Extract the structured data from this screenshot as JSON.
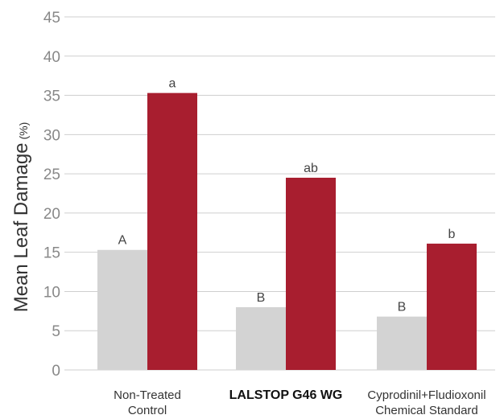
{
  "chart_data": {
    "type": "bar",
    "title": "",
    "xlabel": "",
    "ylabel": "Mean Leaf Damage",
    "ylabel_unit": "(%)",
    "ylim": [
      0,
      45
    ],
    "yticks": [
      "0",
      "5",
      "10",
      "15",
      "20",
      "25",
      "30",
      "35",
      "40",
      "45"
    ],
    "grid": true,
    "categories": [
      {
        "lines": [
          "Non-Treated",
          "Control"
        ],
        "bold": false
      },
      {
        "lines": [
          "LALSTOP G46 WG"
        ],
        "bold": true
      },
      {
        "lines": [
          "Cyprodinil+Fludioxonil",
          "Chemical Standard"
        ],
        "bold": false
      }
    ],
    "series": [
      {
        "color": "#d3d3d3",
        "values": [
          15.3,
          8.0,
          6.8
        ],
        "labels": [
          "A",
          "B",
          "B"
        ]
      },
      {
        "color": "#a81e2f",
        "values": [
          35.3,
          24.5,
          16.1
        ],
        "labels": [
          "a",
          "ab",
          "b"
        ]
      }
    ],
    "colors": {
      "grid": "#cfcfcf",
      "axis_text": "#888888"
    }
  }
}
